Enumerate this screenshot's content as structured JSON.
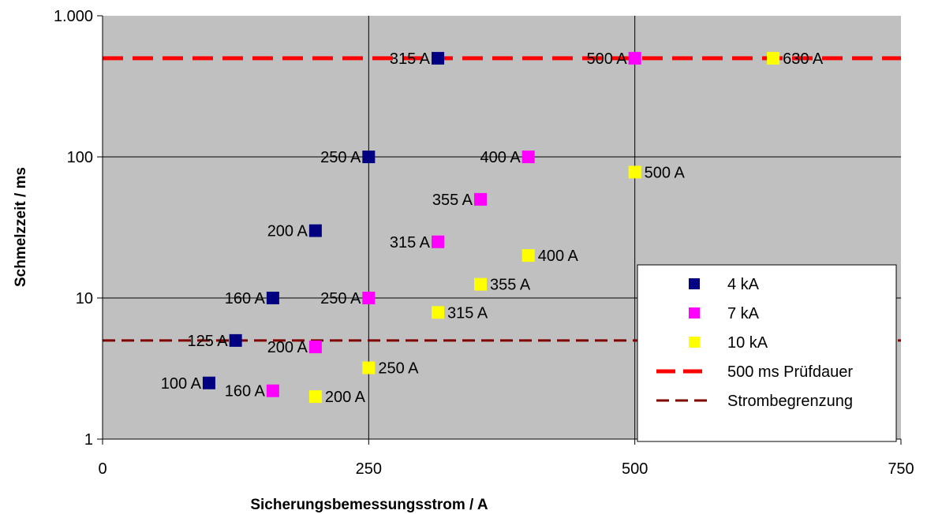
{
  "chart_data": {
    "type": "scatter",
    "title": "",
    "xlabel": "Sicherungsbemessungsstrom / A",
    "ylabel": "Schmelzzeit / ms",
    "xlim": [
      0,
      750
    ],
    "ylim": [
      1,
      1000
    ],
    "y_scale": "log",
    "x_ticks": [
      0,
      250,
      500,
      750
    ],
    "x_tick_labels": [
      "0",
      "250",
      "500",
      "750"
    ],
    "y_ticks": [
      1,
      10,
      100,
      1000
    ],
    "y_tick_labels": [
      "1",
      "10",
      "100",
      "1.000"
    ],
    "grid": true,
    "plot_background": "#C0C0C0",
    "legend_position": "bottom-right",
    "series": [
      {
        "name": "4 kA",
        "color": "#000080",
        "marker": "square",
        "points": [
          {
            "x": 100,
            "y": 2.5,
            "label": "100 A"
          },
          {
            "x": 125,
            "y": 5,
            "label": "125 A"
          },
          {
            "x": 160,
            "y": 10,
            "label": "160 A"
          },
          {
            "x": 200,
            "y": 30,
            "label": "200 A"
          },
          {
            "x": 250,
            "y": 100,
            "label": "250 A"
          },
          {
            "x": 315,
            "y": 500,
            "label": "315 A"
          }
        ]
      },
      {
        "name": "7 kA",
        "color": "#FF00FF",
        "marker": "square",
        "points": [
          {
            "x": 160,
            "y": 2.2,
            "label": "160 A"
          },
          {
            "x": 200,
            "y": 4.5,
            "label": "200 A"
          },
          {
            "x": 250,
            "y": 10,
            "label": "250 A"
          },
          {
            "x": 315,
            "y": 25,
            "label": "315 A"
          },
          {
            "x": 355,
            "y": 50,
            "label": "355 A"
          },
          {
            "x": 400,
            "y": 100,
            "label": "400 A"
          },
          {
            "x": 500,
            "y": 500,
            "label": "500 A"
          }
        ]
      },
      {
        "name": "10 kA",
        "color": "#FFFF00",
        "marker": "square",
        "points": [
          {
            "x": 200,
            "y": 2.0,
            "label": "200 A"
          },
          {
            "x": 250,
            "y": 3.2,
            "label": "250 A"
          },
          {
            "x": 315,
            "y": 7.9,
            "label": "315 A"
          },
          {
            "x": 355,
            "y": 12.5,
            "label": "355 A"
          },
          {
            "x": 400,
            "y": 20,
            "label": "400 A"
          },
          {
            "x": 500,
            "y": 78,
            "label": "500 A"
          },
          {
            "x": 630,
            "y": 500,
            "label": "630 A"
          }
        ]
      }
    ],
    "reference_lines": [
      {
        "name": "500 ms Prüfdauer",
        "y": 500,
        "color": "#FF0000",
        "style": "thick-dashed"
      },
      {
        "name": "Strombegrenzung",
        "y": 5,
        "color": "#800000",
        "style": "dashed"
      }
    ]
  }
}
